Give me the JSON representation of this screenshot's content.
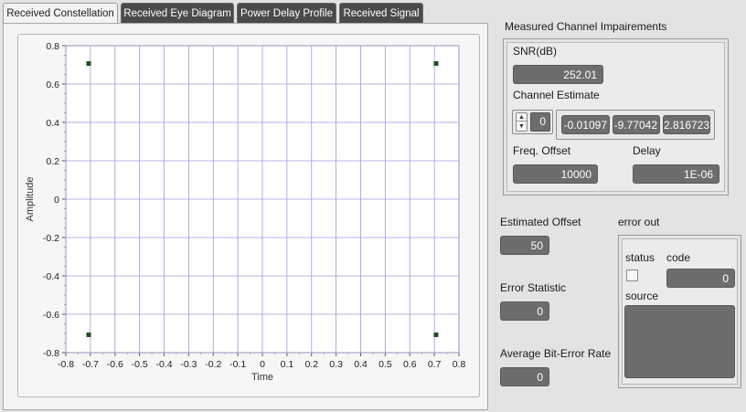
{
  "tabs": [
    {
      "label": "Received Constellation",
      "active": true
    },
    {
      "label": "Received Eye Diagram",
      "active": false
    },
    {
      "label": "Power Delay Profile",
      "active": false
    },
    {
      "label": "Received Signal",
      "active": false
    }
  ],
  "impairments": {
    "title": "Measured Channel Impairements",
    "snr_label": "SNR(dB)",
    "snr_value": "252.01",
    "channel_estimate_label": "Channel Estimate",
    "channel_index": "0",
    "channel_values": [
      "-0.01097",
      "-9.77042",
      "2.816723"
    ],
    "freq_offset_label": "Freq. Offset",
    "freq_offset_value": "10000",
    "delay_label": "Delay",
    "delay_value": "1E-06"
  },
  "estimated_offset": {
    "label": "Estimated Offset",
    "value": "50"
  },
  "error_statistic": {
    "label": "Error Statistic",
    "value": "0"
  },
  "average_ber": {
    "label": "Average Bit-Error Rate",
    "value": "0"
  },
  "error_out": {
    "title": "error out",
    "status_label": "status",
    "status_checked": false,
    "code_label": "code",
    "code_value": "0",
    "source_label": "source",
    "source_value": ""
  },
  "colors": {
    "grid": "#9b9be0",
    "point": "#1f4d26",
    "plot_bg": "#ffffff"
  },
  "chart_data": {
    "type": "scatter",
    "title": "",
    "xlabel": "Time",
    "ylabel": "Amplitude",
    "xlim": [
      -0.8,
      0.8
    ],
    "ylim": [
      -0.8,
      0.8
    ],
    "x_ticks": [
      "-0.8",
      "-0.7",
      "-0.6",
      "-0.5",
      "-0.4",
      "-0.3",
      "-0.2",
      "-0.1",
      "0",
      "0.1",
      "0.2",
      "0.3",
      "0.4",
      "0.5",
      "0.6",
      "0.7",
      "0.8"
    ],
    "y_ticks": [
      "0.8",
      "0.6",
      "0.4",
      "0.2",
      "0",
      "-0.2",
      "-0.4",
      "-0.6",
      "-0.8"
    ],
    "grid": true,
    "points": [
      {
        "x": -0.707,
        "y": 0.707
      },
      {
        "x": 0.707,
        "y": 0.707
      },
      {
        "x": -0.707,
        "y": -0.707
      },
      {
        "x": 0.707,
        "y": -0.707
      }
    ]
  }
}
